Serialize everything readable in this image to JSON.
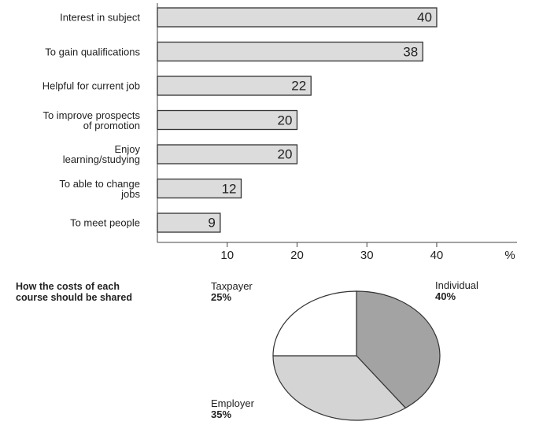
{
  "chart_data": [
    {
      "type": "hbar",
      "categories": [
        "Interest in subject",
        "To gain qualifications",
        "Helpful for current job",
        "To improve prospects\nof promotion",
        "Enjoy\nlearning/studying",
        "To able to change\njobs",
        "To meet people"
      ],
      "values": [
        40,
        38,
        22,
        20,
        20,
        12,
        9
      ],
      "color": "#dcdcdc",
      "xlim": [
        0,
        51.5
      ],
      "xticks": [
        10,
        20,
        30,
        40
      ],
      "x_label": "%"
    },
    {
      "type": "pie",
      "title": "How the costs of each\ncourse should be shared",
      "categories": [
        "Individual",
        "Employer",
        "Taxpayer"
      ],
      "values": [
        40,
        35,
        25
      ],
      "value_labels": [
        "40%",
        "35%",
        "25%"
      ],
      "colors": [
        "#a3a3a3",
        "#d4d4d4",
        "#ffffff"
      ]
    }
  ]
}
